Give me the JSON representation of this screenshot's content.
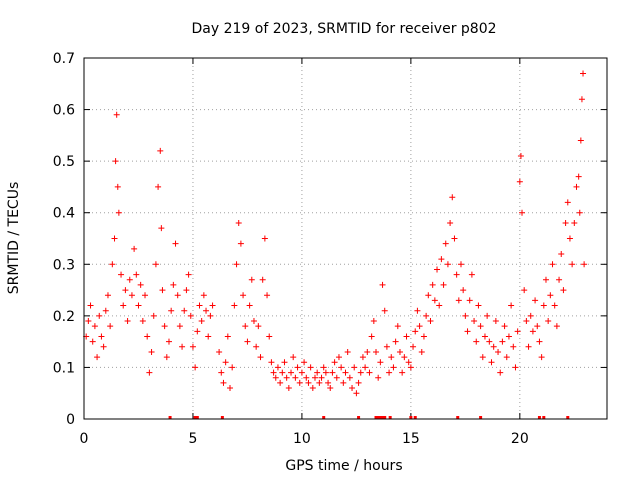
{
  "chart_data": {
    "type": "scatter",
    "title": "Day 219 of 2023, SRMTID for receiver p802",
    "xlabel": "GPS time / hours",
    "ylabel": "SRMTID / TECUs",
    "xlim": [
      0,
      24
    ],
    "ylim": [
      0,
      0.7
    ],
    "xticks": [
      0,
      5,
      10,
      15,
      20
    ],
    "yticks": [
      0,
      0.1,
      0.2,
      0.3,
      0.4,
      0.5,
      0.6,
      0.7
    ],
    "grid": true,
    "marker": "+",
    "color": "#ff0000",
    "series": [
      {
        "name": "SRMTID",
        "points": [
          [
            0.1,
            0.16
          ],
          [
            0.2,
            0.19
          ],
          [
            0.3,
            0.22
          ],
          [
            0.4,
            0.15
          ],
          [
            0.5,
            0.18
          ],
          [
            0.6,
            0.12
          ],
          [
            0.7,
            0.2
          ],
          [
            0.8,
            0.16
          ],
          [
            0.9,
            0.14
          ],
          [
            1.0,
            0.21
          ],
          [
            1.1,
            0.24
          ],
          [
            1.2,
            0.18
          ],
          [
            1.3,
            0.3
          ],
          [
            1.4,
            0.35
          ],
          [
            1.45,
            0.5
          ],
          [
            1.5,
            0.59
          ],
          [
            1.55,
            0.45
          ],
          [
            1.6,
            0.4
          ],
          [
            1.7,
            0.28
          ],
          [
            1.8,
            0.22
          ],
          [
            1.9,
            0.25
          ],
          [
            2.0,
            0.19
          ],
          [
            2.1,
            0.27
          ],
          [
            2.2,
            0.24
          ],
          [
            2.3,
            0.33
          ],
          [
            2.4,
            0.28
          ],
          [
            2.5,
            0.22
          ],
          [
            2.6,
            0.26
          ],
          [
            2.7,
            0.19
          ],
          [
            2.8,
            0.24
          ],
          [
            2.9,
            0.16
          ],
          [
            3.0,
            0.09
          ],
          [
            3.1,
            0.13
          ],
          [
            3.2,
            0.2
          ],
          [
            3.3,
            0.3
          ],
          [
            3.4,
            0.45
          ],
          [
            3.5,
            0.52
          ],
          [
            3.55,
            0.37
          ],
          [
            3.6,
            0.25
          ],
          [
            3.7,
            0.18
          ],
          [
            3.8,
            0.12
          ],
          [
            3.9,
            0.15
          ],
          [
            4.0,
            0.21
          ],
          [
            4.1,
            0.26
          ],
          [
            4.2,
            0.34
          ],
          [
            4.3,
            0.24
          ],
          [
            4.4,
            0.18
          ],
          [
            4.5,
            0.14
          ],
          [
            4.6,
            0.21
          ],
          [
            4.7,
            0.25
          ],
          [
            4.8,
            0.28
          ],
          [
            4.9,
            0.2
          ],
          [
            5.0,
            0.14
          ],
          [
            5.1,
            0.1
          ],
          [
            5.2,
            0.17
          ],
          [
            5.3,
            0.22
          ],
          [
            5.4,
            0.19
          ],
          [
            5.5,
            0.24
          ],
          [
            5.6,
            0.21
          ],
          [
            5.7,
            0.16
          ],
          [
            5.8,
            0.2
          ],
          [
            5.9,
            0.22
          ],
          [
            6.2,
            0.13
          ],
          [
            6.3,
            0.09
          ],
          [
            6.4,
            0.07
          ],
          [
            6.5,
            0.11
          ],
          [
            6.6,
            0.16
          ],
          [
            6.7,
            0.06
          ],
          [
            6.8,
            0.1
          ],
          [
            6.9,
            0.22
          ],
          [
            7.0,
            0.3
          ],
          [
            7.1,
            0.38
          ],
          [
            7.2,
            0.34
          ],
          [
            7.3,
            0.24
          ],
          [
            7.4,
            0.18
          ],
          [
            7.5,
            0.15
          ],
          [
            7.6,
            0.22
          ],
          [
            7.7,
            0.27
          ],
          [
            7.8,
            0.19
          ],
          [
            7.9,
            0.14
          ],
          [
            8.0,
            0.18
          ],
          [
            8.1,
            0.12
          ],
          [
            8.2,
            0.27
          ],
          [
            8.3,
            0.35
          ],
          [
            8.4,
            0.24
          ],
          [
            8.5,
            0.16
          ],
          [
            8.6,
            0.11
          ],
          [
            8.7,
            0.09
          ],
          [
            8.8,
            0.08
          ],
          [
            8.9,
            0.1
          ],
          [
            9.0,
            0.07
          ],
          [
            9.1,
            0.09
          ],
          [
            9.2,
            0.11
          ],
          [
            9.3,
            0.08
          ],
          [
            9.4,
            0.06
          ],
          [
            9.5,
            0.09
          ],
          [
            9.6,
            0.12
          ],
          [
            9.7,
            0.08
          ],
          [
            9.8,
            0.1
          ],
          [
            9.9,
            0.07
          ],
          [
            10.0,
            0.09
          ],
          [
            10.1,
            0.11
          ],
          [
            10.2,
            0.08
          ],
          [
            10.3,
            0.07
          ],
          [
            10.4,
            0.1
          ],
          [
            10.5,
            0.06
          ],
          [
            10.6,
            0.08
          ],
          [
            10.7,
            0.09
          ],
          [
            10.8,
            0.07
          ],
          [
            10.9,
            0.08
          ],
          [
            11.0,
            0.1
          ],
          [
            11.1,
            0.09
          ],
          [
            11.2,
            0.07
          ],
          [
            11.3,
            0.06
          ],
          [
            11.4,
            0.09
          ],
          [
            11.5,
            0.11
          ],
          [
            11.6,
            0.08
          ],
          [
            11.7,
            0.12
          ],
          [
            11.8,
            0.1
          ],
          [
            11.9,
            0.07
          ],
          [
            12.0,
            0.09
          ],
          [
            12.1,
            0.13
          ],
          [
            12.2,
            0.08
          ],
          [
            12.3,
            0.06
          ],
          [
            12.4,
            0.1
          ],
          [
            12.5,
            0.05
          ],
          [
            12.6,
            0.07
          ],
          [
            12.7,
            0.09
          ],
          [
            12.8,
            0.12
          ],
          [
            12.9,
            0.1
          ],
          [
            13.0,
            0.13
          ],
          [
            13.1,
            0.09
          ],
          [
            13.2,
            0.16
          ],
          [
            13.3,
            0.19
          ],
          [
            13.4,
            0.13
          ],
          [
            13.5,
            0.08
          ],
          [
            13.6,
            0.11
          ],
          [
            13.7,
            0.26
          ],
          [
            13.8,
            0.21
          ],
          [
            13.9,
            0.14
          ],
          [
            14.0,
            0.09
          ],
          [
            14.1,
            0.12
          ],
          [
            14.2,
            0.1
          ],
          [
            14.3,
            0.15
          ],
          [
            14.4,
            0.18
          ],
          [
            14.5,
            0.13
          ],
          [
            14.6,
            0.09
          ],
          [
            14.7,
            0.12
          ],
          [
            14.8,
            0.16
          ],
          [
            14.9,
            0.11
          ],
          [
            15.0,
            0.1
          ],
          [
            15.1,
            0.14
          ],
          [
            15.2,
            0.17
          ],
          [
            15.3,
            0.21
          ],
          [
            15.4,
            0.18
          ],
          [
            15.5,
            0.13
          ],
          [
            15.6,
            0.16
          ],
          [
            15.7,
            0.2
          ],
          [
            15.8,
            0.24
          ],
          [
            15.9,
            0.19
          ],
          [
            16.0,
            0.26
          ],
          [
            16.1,
            0.23
          ],
          [
            16.2,
            0.29
          ],
          [
            16.3,
            0.22
          ],
          [
            16.4,
            0.31
          ],
          [
            16.5,
            0.26
          ],
          [
            16.6,
            0.34
          ],
          [
            16.7,
            0.3
          ],
          [
            16.8,
            0.38
          ],
          [
            16.9,
            0.43
          ],
          [
            17.0,
            0.35
          ],
          [
            17.1,
            0.28
          ],
          [
            17.2,
            0.23
          ],
          [
            17.3,
            0.3
          ],
          [
            17.4,
            0.25
          ],
          [
            17.5,
            0.2
          ],
          [
            17.6,
            0.17
          ],
          [
            17.7,
            0.23
          ],
          [
            17.8,
            0.28
          ],
          [
            17.9,
            0.19
          ],
          [
            18.0,
            0.15
          ],
          [
            18.1,
            0.22
          ],
          [
            18.2,
            0.18
          ],
          [
            18.3,
            0.12
          ],
          [
            18.4,
            0.16
          ],
          [
            18.5,
            0.2
          ],
          [
            18.6,
            0.15
          ],
          [
            18.7,
            0.11
          ],
          [
            18.8,
            0.14
          ],
          [
            18.9,
            0.19
          ],
          [
            19.0,
            0.13
          ],
          [
            19.1,
            0.09
          ],
          [
            19.2,
            0.15
          ],
          [
            19.3,
            0.18
          ],
          [
            19.4,
            0.12
          ],
          [
            19.5,
            0.16
          ],
          [
            19.6,
            0.22
          ],
          [
            19.7,
            0.14
          ],
          [
            19.8,
            0.1
          ],
          [
            19.9,
            0.17
          ],
          [
            20.0,
            0.46
          ],
          [
            20.05,
            0.51
          ],
          [
            20.1,
            0.4
          ],
          [
            20.2,
            0.25
          ],
          [
            20.3,
            0.19
          ],
          [
            20.4,
            0.14
          ],
          [
            20.5,
            0.2
          ],
          [
            20.6,
            0.17
          ],
          [
            20.7,
            0.23
          ],
          [
            20.8,
            0.18
          ],
          [
            20.9,
            0.15
          ],
          [
            21.0,
            0.12
          ],
          [
            21.1,
            0.22
          ],
          [
            21.2,
            0.27
          ],
          [
            21.3,
            0.19
          ],
          [
            21.4,
            0.24
          ],
          [
            21.5,
            0.3
          ],
          [
            21.6,
            0.22
          ],
          [
            21.7,
            0.18
          ],
          [
            21.8,
            0.27
          ],
          [
            21.9,
            0.32
          ],
          [
            22.0,
            0.25
          ],
          [
            22.1,
            0.38
          ],
          [
            22.2,
            0.42
          ],
          [
            22.3,
            0.35
          ],
          [
            22.4,
            0.3
          ],
          [
            22.5,
            0.38
          ],
          [
            22.6,
            0.45
          ],
          [
            22.7,
            0.47
          ],
          [
            22.75,
            0.4
          ],
          [
            22.8,
            0.54
          ],
          [
            22.85,
            0.62
          ],
          [
            22.9,
            0.67
          ],
          [
            22.95,
            0.3
          ]
        ]
      }
    ],
    "bottom_markers_hours": [
      3.95,
      5.1,
      5.2,
      6.35,
      11.0,
      12.6,
      13.4,
      13.5,
      13.6,
      13.7,
      13.8,
      14.05,
      15.0,
      15.2,
      17.15,
      18.2,
      20.9,
      21.1,
      22.2
    ]
  }
}
